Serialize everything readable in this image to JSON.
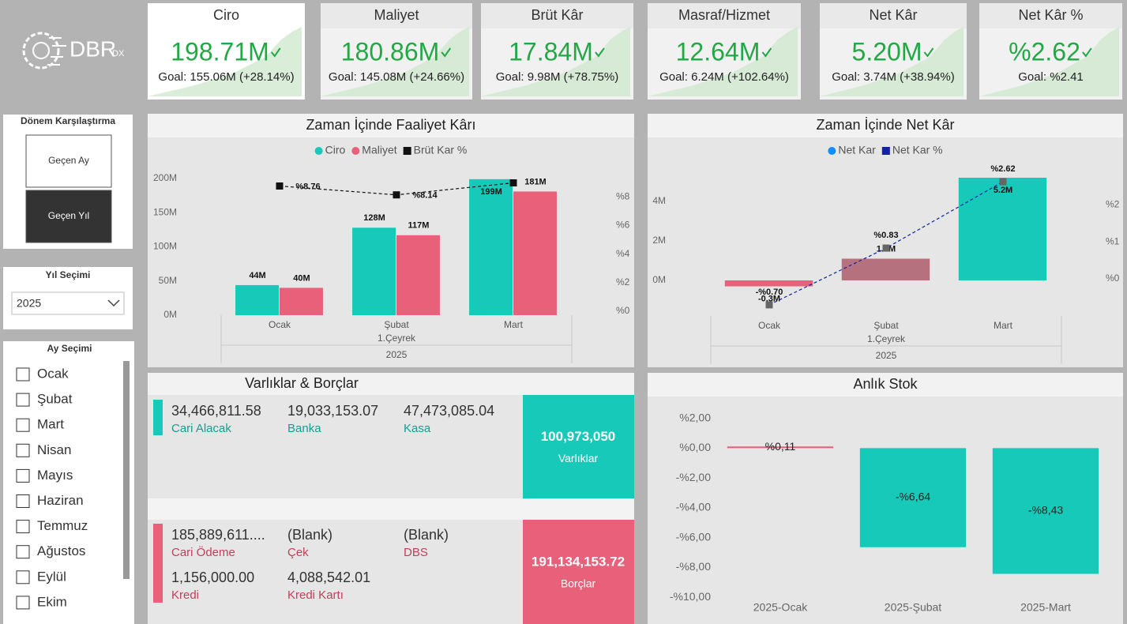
{
  "logo": {
    "text": "DBR",
    "sub": "DX"
  },
  "kpis": [
    {
      "title": "Ciro",
      "value": "198.71M",
      "goal": "Goal: 155.06M (+28.14%)"
    },
    {
      "title": "Maliyet",
      "value": "180.86M",
      "goal": "Goal: 145.08M (+24.66%)"
    },
    {
      "title": "Brüt Kâr",
      "value": "17.84M",
      "goal": "Goal: 9.98M (+78.75%)"
    },
    {
      "title": "Masraf/Hizmet",
      "value": "12.64M",
      "goal": "Goal: 6.24M (+102.64%)"
    },
    {
      "title": "Net Kâr",
      "value": "5.20M",
      "goal": "Goal: 3.74M (+38.94%)"
    },
    {
      "title": "Net Kâr %",
      "value": "%2.62",
      "goal": "Goal: %2.41"
    }
  ],
  "period": {
    "title": "Dönem Karşılaştırma",
    "options": [
      "Geçen Ay",
      "Geçen Yıl"
    ]
  },
  "year": {
    "title": "Yıl Seçimi",
    "value": "2025"
  },
  "months": {
    "title": "Ay Seçimi",
    "options": [
      "Ocak",
      "Şubat",
      "Mart",
      "Nisan",
      "Mayıs",
      "Haziran",
      "Temmuz",
      "Ağustos",
      "Eylül",
      "Ekim"
    ]
  },
  "chart_data": [
    {
      "type": "combo",
      "title": "Zaman İçinde Faaliyet Kârı",
      "categories": [
        "Ocak",
        "Şubat",
        "Mart"
      ],
      "group_labels": [
        "1.Çeyrek",
        "2025"
      ],
      "series": [
        {
          "name": "Ciro",
          "type": "bar",
          "color": "#17c9b8",
          "values": [
            44,
            128,
            199
          ],
          "value_labels": [
            "44M",
            "128M",
            "199M"
          ]
        },
        {
          "name": "Maliyet",
          "type": "bar",
          "color": "#e8607a",
          "values": [
            40,
            117,
            181
          ],
          "value_labels": [
            "40M",
            "117M",
            "181M"
          ]
        },
        {
          "name": "Brüt Kar %",
          "type": "line",
          "axis": "y2",
          "color": "#111111",
          "values": [
            8.76,
            8.14,
            8.98
          ],
          "value_labels": [
            "%8.76",
            "%8.14",
            null
          ]
        }
      ],
      "ylim": [
        0,
        218.5
      ],
      "yticks": [
        {
          "value": 0,
          "label": "0M"
        },
        {
          "value": 50,
          "label": "50M"
        },
        {
          "value": 100,
          "label": "100M"
        },
        {
          "value": 150,
          "label": "150M"
        },
        {
          "value": 200,
          "label": "200M"
        }
      ],
      "y2lim": [
        -0.28,
        10.17
      ],
      "y2ticks": [
        {
          "value": 0,
          "label": "%0"
        },
        {
          "value": 2,
          "label": "%2"
        },
        {
          "value": 4,
          "label": "%4"
        },
        {
          "value": 6,
          "label": "%6"
        },
        {
          "value": 8,
          "label": "%8"
        }
      ]
    },
    {
      "type": "combo",
      "title": "Zaman İçinde Net Kâr",
      "categories": [
        "Ocak",
        "Şubat",
        "Mart"
      ],
      "group_labels": [
        "1.Çeyrek",
        "2025"
      ],
      "series": [
        {
          "name": "Net Kar",
          "type": "bar",
          "color": "#118dff",
          "colors": [
            "#e8607a",
            "#b5727e",
            "#17c9b8"
          ],
          "values": [
            -0.3,
            1.1,
            5.2
          ],
          "value_labels": [
            "-0.3M",
            "1.1M",
            "5.2M"
          ]
        },
        {
          "name": "Net Kar %",
          "type": "line",
          "axis": "y2",
          "color": "#12239e",
          "values": [
            -0.7,
            0.83,
            2.62
          ],
          "value_labels": [
            "-%0.70",
            "%0.83",
            "%2.62"
          ]
        }
      ],
      "ylim": [
        -1.8,
        5.6
      ],
      "yticks": [
        {
          "value": 0,
          "label": "0M"
        },
        {
          "value": 2,
          "label": "2M"
        },
        {
          "value": 4,
          "label": "4M"
        }
      ],
      "y2lim": [
        -1.0,
        2.94
      ],
      "y2ticks": [
        {
          "value": 0,
          "label": "%0"
        },
        {
          "value": 1,
          "label": "%1"
        },
        {
          "value": 2,
          "label": "%2"
        }
      ]
    },
    {
      "type": "bar",
      "title": "Anlık Stok",
      "categories": [
        "2025-Ocak",
        "2025-Şubat",
        "2025-Mart"
      ],
      "values": [
        0.11,
        -6.64,
        -8.43
      ],
      "value_labels": [
        "%0,11",
        "-%6,64",
        "-%8,43"
      ],
      "colors": [
        "#e8607a",
        "#17c9b8",
        "#17c9b8"
      ],
      "ylim": [
        -10.2,
        3.3
      ],
      "yticks": [
        {
          "value": 2,
          "label": "%2,00"
        },
        {
          "value": 0,
          "label": "%0,00"
        },
        {
          "value": -2,
          "label": "-%2,00"
        },
        {
          "value": -4,
          "label": "-%4,00"
        },
        {
          "value": -6,
          "label": "-%6,00"
        },
        {
          "value": -8,
          "label": "-%8,00"
        },
        {
          "value": -10,
          "label": "-%10,00"
        }
      ]
    }
  ],
  "balance": {
    "title": "Varlıklar & Borçlar",
    "assets": {
      "items": [
        {
          "value": "34,466,811.58",
          "label": "Cari Alacak"
        },
        {
          "value": "19,033,153.07",
          "label": "Banka"
        },
        {
          "value": "47,473,085.04",
          "label": "Kasa"
        }
      ],
      "total": "100,973,050",
      "total_label": "Varlıklar"
    },
    "liabilities": {
      "items": [
        {
          "value": "185,889,611....",
          "label": "Cari Ödeme"
        },
        {
          "value": "(Blank)",
          "label": "Çek"
        },
        {
          "value": "(Blank)",
          "label": "DBS"
        },
        {
          "value": "1,156,000.00",
          "label": "Kredi"
        },
        {
          "value": "4,088,542.01",
          "label": "Kredi Kartı"
        }
      ],
      "total": "191,134,153.72",
      "total_label": "Borçlar"
    }
  }
}
